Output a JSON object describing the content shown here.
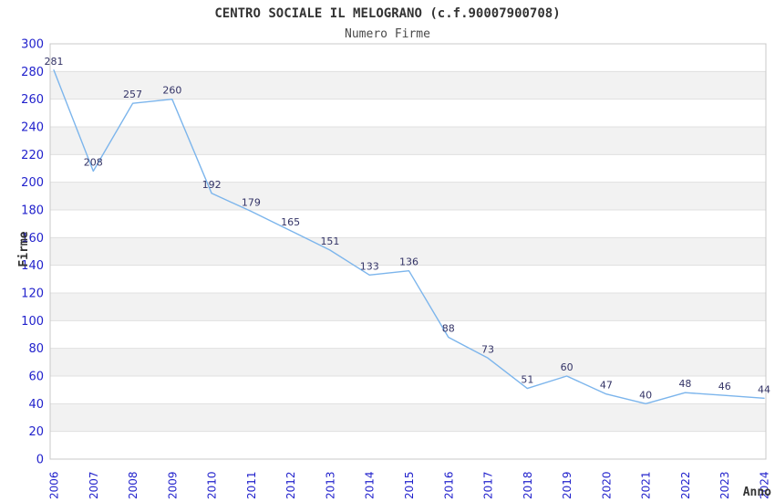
{
  "chart_data": {
    "type": "line",
    "title": "CENTRO SOCIALE IL MELOGRANO (c.f.90007900708)",
    "subtitle": "Numero Firme",
    "xlabel": "Anno",
    "ylabel": "Firme",
    "x": [
      2006,
      2007,
      2008,
      2009,
      2010,
      2011,
      2012,
      2013,
      2014,
      2015,
      2016,
      2017,
      2018,
      2019,
      2020,
      2021,
      2022,
      2023,
      2024
    ],
    "series": [
      {
        "name": "Numero Firme",
        "values": [
          281,
          208,
          257,
          260,
          192,
          179,
          165,
          151,
          133,
          136,
          88,
          73,
          51,
          60,
          47,
          40,
          48,
          46,
          44
        ]
      }
    ],
    "ylim": [
      0,
      300
    ],
    "ytick_step": 20,
    "grid": "horizontal",
    "plot_bands": "alternating-horizontal",
    "legend": "none",
    "data_labels": true,
    "colors": {
      "line": "#7cb5ec",
      "tick_label": "#2222cc",
      "data_label": "#333366",
      "band_fill": "#f2f2f2",
      "gridline": "#e0e0e0",
      "plot_border": "#c8c8c8",
      "title": "#333333",
      "background": "#ffffff"
    }
  }
}
